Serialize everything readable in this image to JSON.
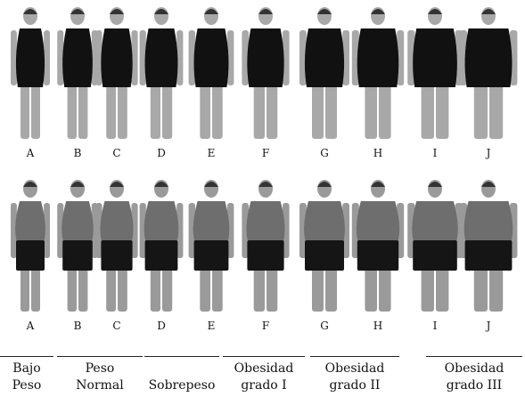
{
  "figures": {
    "top_row": {
      "letters": [
        "A",
        "B",
        "C",
        "D",
        "E",
        "F",
        "G",
        "H",
        "I",
        "J"
      ],
      "widths": [
        0.3,
        0.34,
        0.38,
        0.42,
        0.47,
        0.53,
        0.6,
        0.66,
        0.74,
        0.82
      ],
      "skin": "#a8a8a8",
      "garment": "#111111"
    },
    "bottom_row": {
      "letters": [
        "A",
        "B",
        "C",
        "D",
        "E",
        "F",
        "G",
        "H",
        "I",
        "J"
      ],
      "widths": [
        0.3,
        0.34,
        0.38,
        0.42,
        0.47,
        0.53,
        0.6,
        0.66,
        0.74,
        0.82
      ],
      "skin": "#9a9a9a",
      "tank": "#6e6e6e",
      "shorts": "#151515"
    }
  },
  "groups": [
    {
      "line1": "Bajo",
      "line2": "Peso"
    },
    {
      "line1": "Peso",
      "line2": "Normal"
    },
    {
      "line1": "Sobrepeso",
      "line2": ""
    },
    {
      "line1": "Obesidad",
      "line2": "grado I"
    },
    {
      "line1": "Obesidad",
      "line2": "grado II"
    },
    {
      "line1": "Obesidad",
      "line2": "grado III"
    }
  ]
}
